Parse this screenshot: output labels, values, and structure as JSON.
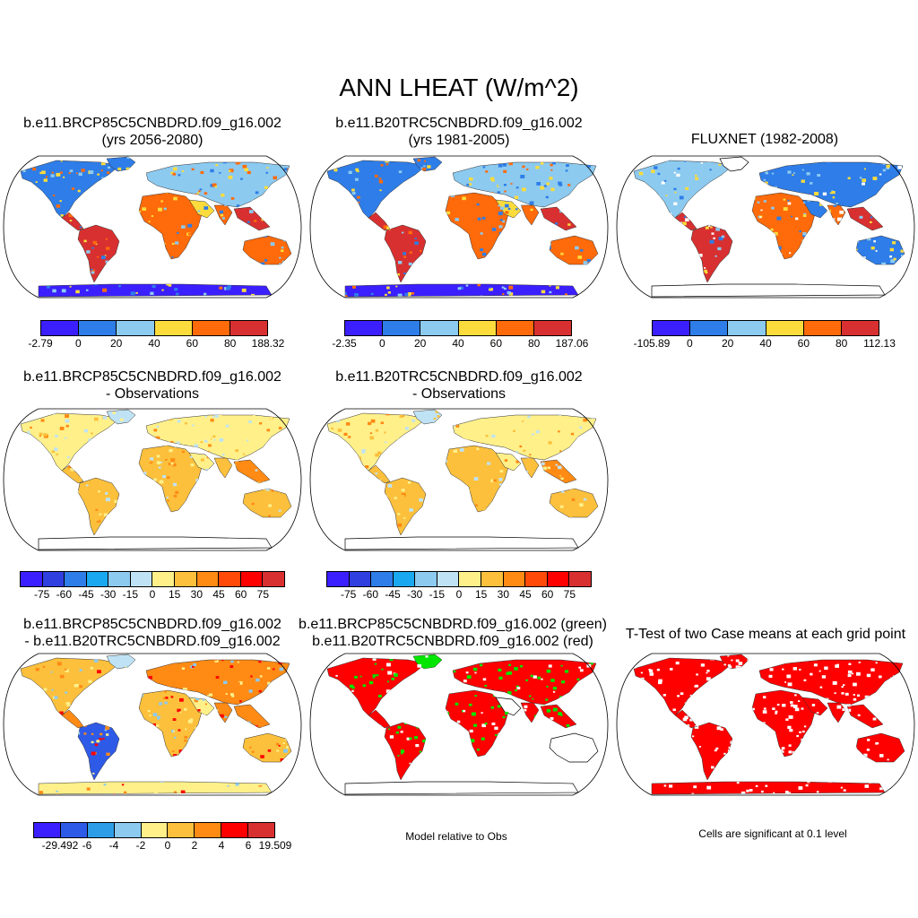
{
  "main_title": "ANN LHEAT (W/m^2)",
  "panels": [
    {
      "id": "p1",
      "title_l1": "b.e11.BRCP85C5CNBDRD.f09_g16.002",
      "title_l2": "(yrs 2056-2080)"
    },
    {
      "id": "p2",
      "title_l1": "b.e11.B20TRC5CNBDRD.f09_g16.002",
      "title_l2": "(yrs 1981-2005)"
    },
    {
      "id": "p3",
      "title_l1": "FLUXNET (1982-2008)",
      "title_l2": ""
    },
    {
      "id": "p4",
      "title_l1": "b.e11.BRCP85C5CNBDRD.f09_g16.002",
      "title_l2": "- Observations"
    },
    {
      "id": "p5",
      "title_l1": "b.e11.B20TRC5CNBDRD.f09_g16.002",
      "title_l2": "- Observations"
    },
    {
      "id": "p7",
      "title_l1": "b.e11.BRCP85C5CNBDRD.f09_g16.002",
      "title_l2": "- b.e11.B20TRC5CNBDRD.f09_g16.002"
    },
    {
      "id": "p8",
      "title_l1": "b.e11.BRCP85C5CNBDRD.f09_g16.002 (green)",
      "title_l2": "b.e11.B20TRC5CNBDRD.f09_g16.002 (red)"
    },
    {
      "id": "p9",
      "title_l1": "T-Test of two Case means at each grid point",
      "title_l2": ""
    }
  ],
  "notes": {
    "p8": "Model relative to Obs",
    "p9": "Cells are significant at 0.1 level"
  },
  "colorbars": {
    "cb1": {
      "labels": [
        "-2.79",
        "0",
        "20",
        "40",
        "60",
        "80",
        "188.32"
      ],
      "colors": [
        "#3b1fff",
        "#2e7de8",
        "#8ccaf0",
        "#fcdc3c",
        "#ff6a0a",
        "#d83030"
      ]
    },
    "cb2": {
      "labels": [
        "-2.35",
        "0",
        "20",
        "40",
        "60",
        "80",
        "187.06"
      ],
      "colors": [
        "#3b1fff",
        "#2e7de8",
        "#8ccaf0",
        "#fcdc3c",
        "#ff6a0a",
        "#d83030"
      ]
    },
    "cb3": {
      "labels": [
        "-105.89",
        "0",
        "20",
        "40",
        "60",
        "80",
        "112.13"
      ],
      "colors": [
        "#3b1fff",
        "#2e7de8",
        "#8ccaf0",
        "#fcdc3c",
        "#ff6a0a",
        "#d83030"
      ]
    },
    "cb4": {
      "labels": [
        "-75",
        "-60",
        "-45",
        "-30",
        "-15",
        "0",
        "15",
        "30",
        "45",
        "60",
        "75"
      ],
      "colors": [
        "#3b1fff",
        "#2f3fe0",
        "#2e7de8",
        "#1aa8f0",
        "#8ccaf0",
        "#bfe3f5",
        "#fff08a",
        "#fcc03c",
        "#ff8a14",
        "#ff4a0a",
        "#ff0000",
        "#d83030"
      ]
    },
    "cb5": {
      "labels": [
        "-75",
        "-60",
        "-45",
        "-30",
        "-15",
        "0",
        "15",
        "30",
        "45",
        "60",
        "75"
      ],
      "colors": [
        "#3b1fff",
        "#2f3fe0",
        "#2e7de8",
        "#1aa8f0",
        "#8ccaf0",
        "#bfe3f5",
        "#fff08a",
        "#fcc03c",
        "#ff8a14",
        "#ff4a0a",
        "#ff0000",
        "#d83030"
      ]
    },
    "cb7": {
      "labels": [
        "-29.492",
        "-6",
        "-4",
        "-2",
        "0",
        "2",
        "4",
        "6",
        "19.509"
      ],
      "colors": [
        "#3b1fff",
        "#2e5ae8",
        "#2e9de8",
        "#8ccaf0",
        "#fff08a",
        "#fcc03c",
        "#ff8a14",
        "#ff0000",
        "#d83030"
      ]
    }
  }
}
